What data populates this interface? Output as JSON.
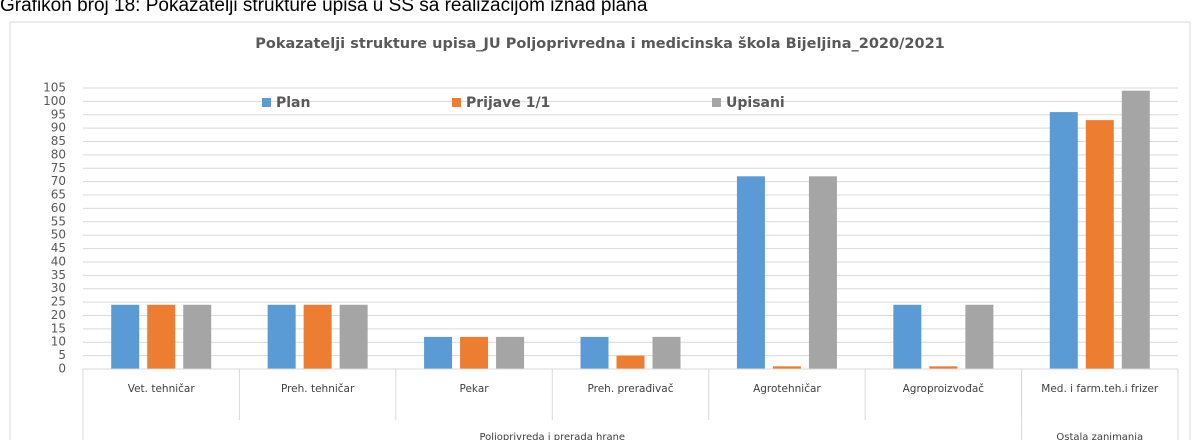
{
  "caption": "Grafikon broj 18: Pokazatelji strukture upisa u SŠ sa realizacijom iznad plana",
  "chart_data": {
    "type": "bar",
    "title": "Pokazatelji strukture upisa_JU  Poljoprivredna i medicinska škola Bijeljina_2020/2021",
    "categories": [
      "Vet. tehničar",
      "Preh. tehničar",
      "Pekar",
      "Preh. prerađivač",
      "Agrotehničar",
      "Agroproizvođač",
      "Med. i farm.teh.i frizer"
    ],
    "groups": [
      {
        "label": "Poljoprivreda i prerada hrane",
        "count": 6
      },
      {
        "label": "Ostala zanimanja",
        "count": 1
      }
    ],
    "series": [
      {
        "name": "Plan",
        "color": "#5b9bd5",
        "values": [
          24,
          24,
          12,
          12,
          72,
          24,
          96
        ]
      },
      {
        "name": "Prijave 1/1",
        "color": "#ed7d31",
        "values": [
          24,
          24,
          12,
          5,
          1,
          1,
          93
        ]
      },
      {
        "name": "Upisani",
        "color": "#a5a5a5",
        "values": [
          24,
          24,
          12,
          12,
          72,
          24,
          104
        ]
      }
    ],
    "ylim": [
      0,
      105
    ],
    "yticks": [
      0,
      5,
      10,
      15,
      20,
      25,
      30,
      35,
      40,
      45,
      50,
      55,
      60,
      65,
      70,
      75,
      80,
      85,
      90,
      95,
      100,
      105
    ],
    "grid": true,
    "legend": "top-left"
  }
}
